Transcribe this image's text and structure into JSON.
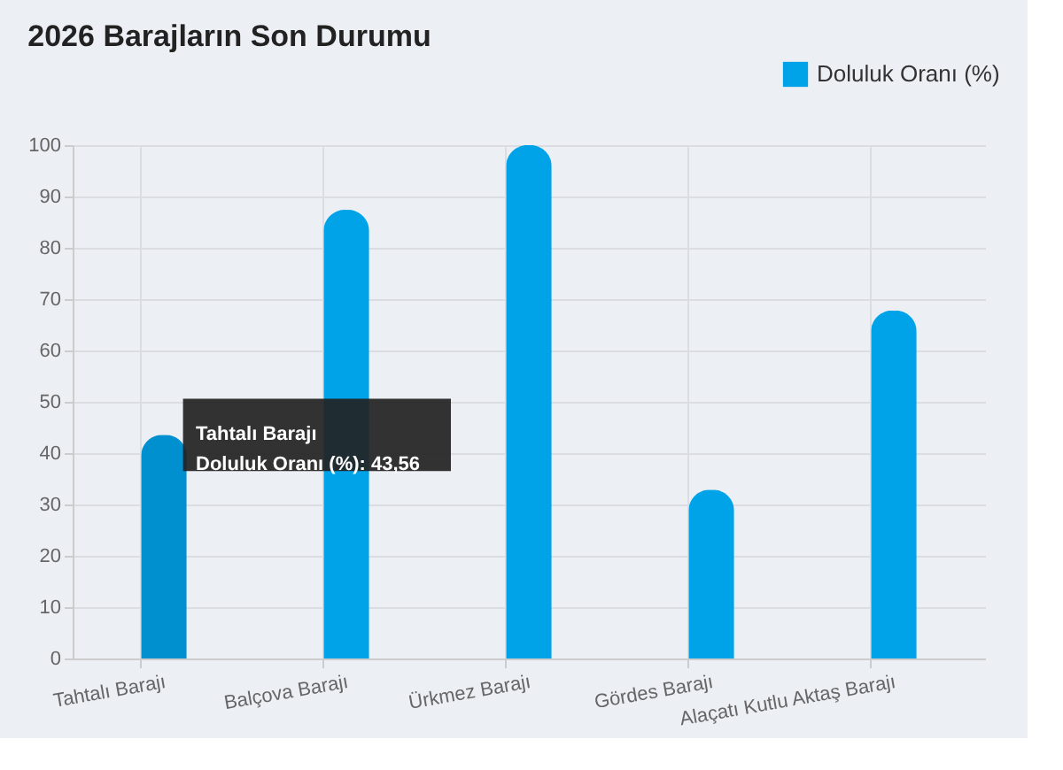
{
  "chart_data": {
    "type": "bar",
    "title": "2026 Barajların Son Durumu",
    "categories": [
      "Tahtalı Barajı",
      "Balçova Barajı",
      "Ürkmez Barajı",
      "Gördes Barajı",
      "Alaçatı Kutlu Aktaş Barajı"
    ],
    "series": [
      {
        "name": "Doluluk Oranı (%)",
        "color": "#00a3e8",
        "colors": [
          "#0090d0",
          "#00a3e8",
          "#00a3e8",
          "#00a3e8",
          "#00a3e8"
        ],
        "values": [
          43.56,
          87.4,
          100,
          32.9,
          67.8
        ]
      }
    ],
    "ylim": [
      0,
      100
    ],
    "yticks": [
      0,
      10,
      20,
      30,
      40,
      50,
      60,
      70,
      80,
      90,
      100
    ],
    "grid": true,
    "legend": "top right",
    "annotations": [
      "Tahtalı Barajı\nDoluluk Oranı (%): 43,56"
    ]
  }
}
